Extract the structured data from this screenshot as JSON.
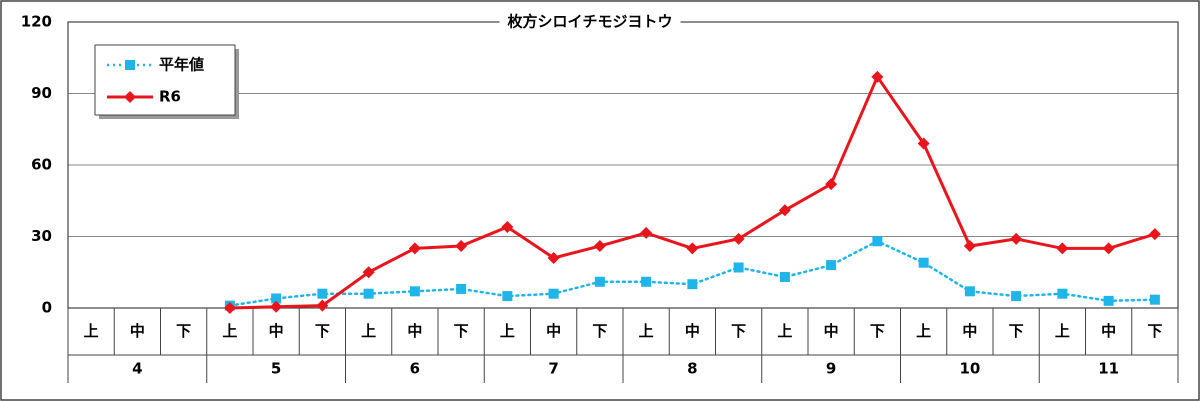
{
  "chart_data": {
    "type": "line",
    "title": "枚方シロイチモジヨトウ",
    "categories": [
      "上",
      "中",
      "下",
      "上",
      "中",
      "下",
      "上",
      "中",
      "下",
      "上",
      "中",
      "下",
      "上",
      "中",
      "下",
      "上",
      "中",
      "下",
      "上",
      "中",
      "下",
      "上",
      "中",
      "下"
    ],
    "groups": [
      "4",
      "5",
      "6",
      "7",
      "8",
      "9",
      "10",
      "11"
    ],
    "series": [
      {
        "name": "平年値",
        "color": "#1fb5e8",
        "line_style": "dotted",
        "marker": "square",
        "values": [
          null,
          null,
          null,
          1,
          4,
          6,
          6,
          7,
          8,
          5,
          6,
          11,
          11,
          10,
          17,
          13,
          18,
          28,
          19,
          7,
          5,
          6,
          3,
          3.5
        ]
      },
      {
        "name": "R6",
        "color": "#e8161c",
        "line_style": "solid",
        "marker": "diamond",
        "values": [
          null,
          null,
          null,
          0,
          0.5,
          1,
          15,
          25,
          26,
          34,
          21,
          26,
          31.5,
          25,
          29,
          41,
          52,
          97,
          69,
          26,
          29,
          25,
          25,
          31
        ]
      }
    ],
    "ylim": [
      0,
      120
    ],
    "yticks": [
      0,
      30,
      60,
      90,
      120
    ],
    "grid": true,
    "legend": "top-left"
  }
}
